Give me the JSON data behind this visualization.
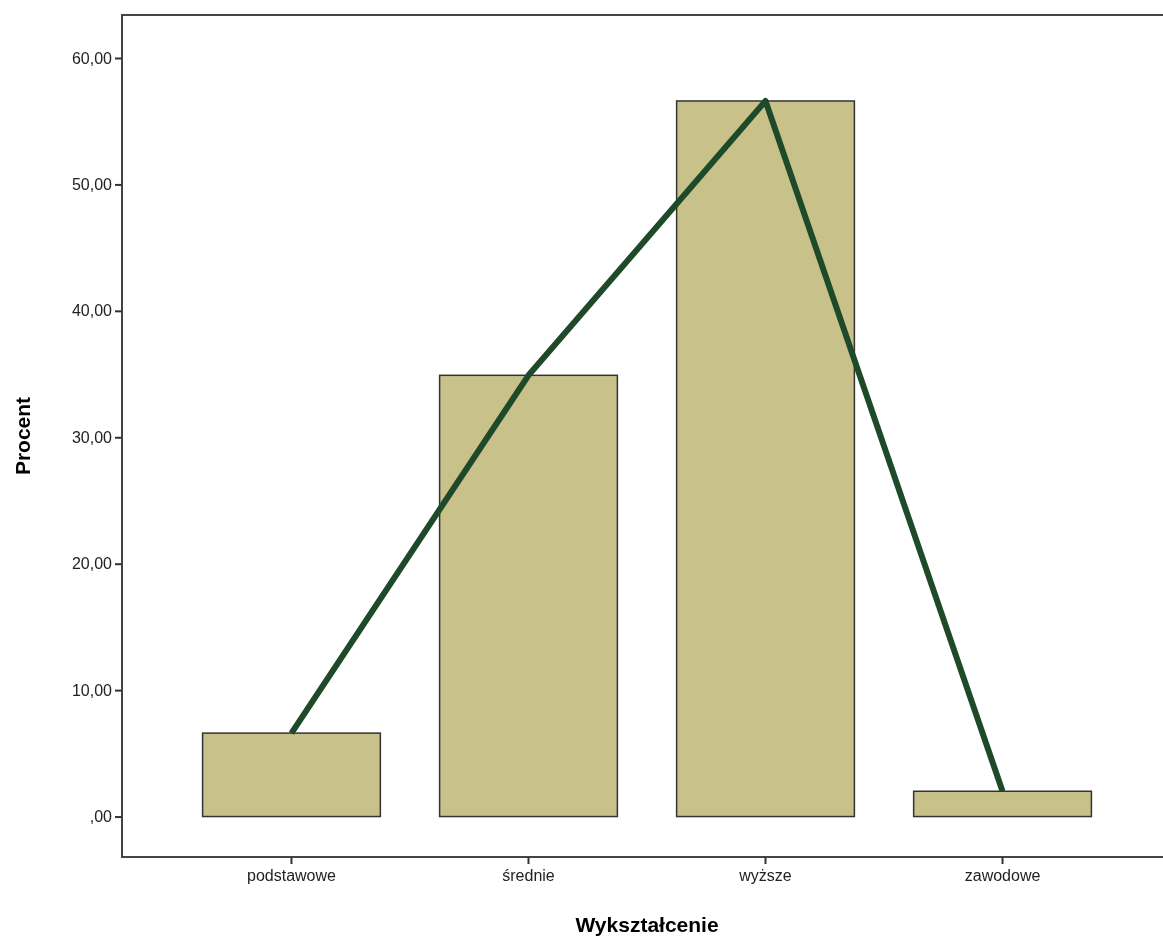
{
  "chart_data": {
    "type": "bar",
    "xlabel": "Wykształcenie",
    "ylabel": "Procent",
    "categories": [
      "podstawowe",
      "średnie",
      "wyższe",
      "zawodowe"
    ],
    "series": [
      {
        "color": "#c8c28a",
        "values": [
          6.6,
          34.9,
          56.6,
          2.0
        ]
      },
      {
        "type": "line",
        "color": "#1f4a2a",
        "values": [
          6.6,
          34.9,
          56.6,
          2.0
        ]
      }
    ],
    "ylim": [
      -3.2,
      63.4
    ],
    "yticks": [
      {
        "value": 0,
        "label": ",00"
      },
      {
        "value": 10,
        "label": "10,00"
      },
      {
        "value": 20,
        "label": "20,00"
      },
      {
        "value": 30,
        "label": "30,00"
      },
      {
        "value": 40,
        "label": "40,00"
      },
      {
        "value": 50,
        "label": "50,00"
      },
      {
        "value": 60,
        "label": "60,00"
      }
    ],
    "grid": false,
    "marker": "none",
    "line_style": "solid"
  }
}
